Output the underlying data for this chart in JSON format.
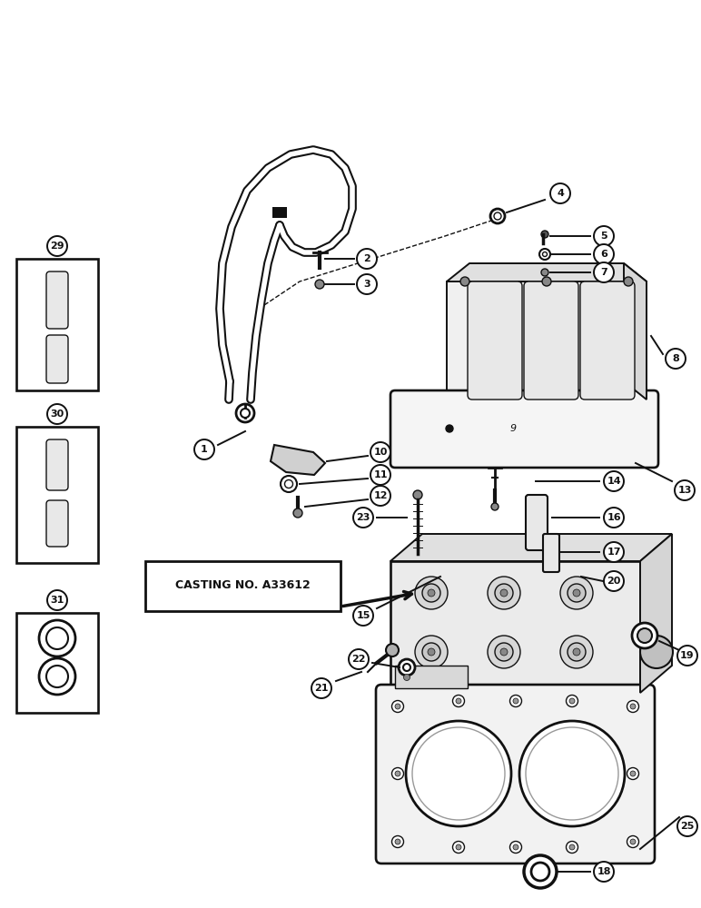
{
  "bg_color": "#ffffff",
  "lc": "#111111",
  "casting_label": "CASTING NO. A33612",
  "fig_w": 7.72,
  "fig_h": 10.0,
  "dpi": 100
}
